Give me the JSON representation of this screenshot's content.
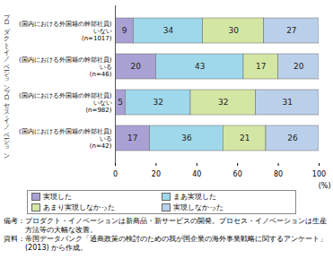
{
  "chart_data": {
    "type": "bar",
    "orientation": "horizontal",
    "stacked": true,
    "data_labels": true,
    "legend": "bottom",
    "categories": [
      "(国内における外国籍の幹部社員)\nいない\n(n=1017)",
      "(国内における外国籍の幹部社員)\nいる\n(n=46)",
      "(国内における外国籍の幹部社員)\nいない\n(n=982)",
      "(国内における外国籍の幹部社員)\nいる\n(n=42)"
    ],
    "groups": [
      {
        "label": "プロダクト・イノベーション",
        "members": [
          0,
          1
        ]
      },
      {
        "label": "プロセス・イノベーション",
        "members": [
          2,
          3
        ]
      }
    ],
    "series": [
      {
        "name": "実現した",
        "color": "#a9a0d4",
        "values": [
          9,
          20,
          5,
          17
        ]
      },
      {
        "name": "まあ実現した",
        "color": "#9fd8ea",
        "values": [
          34,
          43,
          32,
          36
        ]
      },
      {
        "name": "あまり実現しなかった",
        "color": "#d4e6a4",
        "values": [
          30,
          17,
          32,
          21
        ]
      },
      {
        "name": "実現しなかった",
        "color": "#bad0ea",
        "values": [
          27,
          20,
          31,
          26
        ]
      }
    ],
    "xlim": [
      0,
      100
    ],
    "xticks": [
      0,
      20,
      40,
      60,
      80,
      100
    ],
    "x_label": "(%)",
    "grid": false,
    "notes": [
      "備考：プロダクト・イノベーションは新商品・新サービスの開発。プロセス・イノベーションは生産方法等の大幅な改善。",
      "資料：帝国データバンク「通商政策の検討のための我が国企業の海外事業戦略に関するアンケート」(2013) から作成。"
    ]
  }
}
